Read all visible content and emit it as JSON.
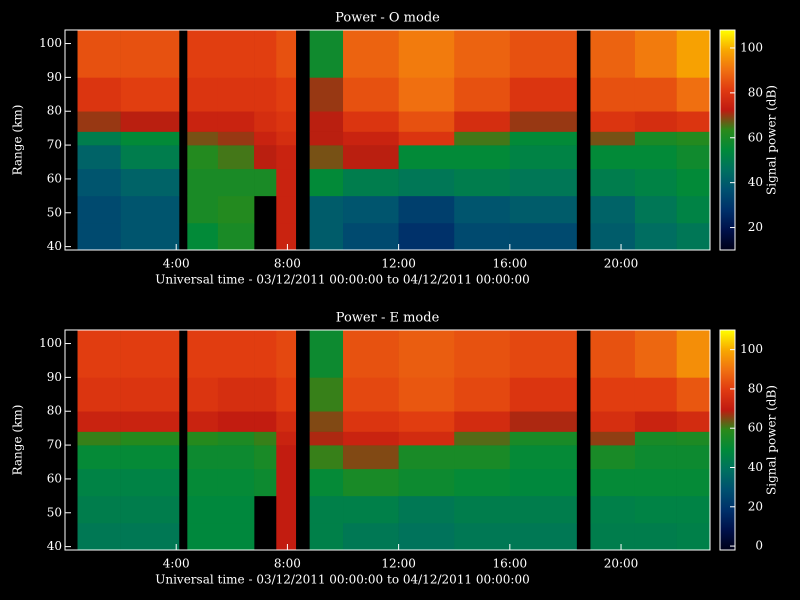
{
  "chart_data": [
    {
      "type": "heatmap",
      "title": "Power - O mode",
      "xlabel": "Universal time - 03/12/2011 00:00:00 to 04/12/2011 00:00:00",
      "ylabel": "Range (km)",
      "colorbar_label": "Signal power (dB)",
      "x_bins": [
        0,
        0.45,
        2,
        4.1,
        4.4,
        5.5,
        6.8,
        7.6,
        8.3,
        8.8,
        10,
        12,
        14,
        16,
        18.4,
        18.9,
        20.5,
        22,
        23.2
      ],
      "y_bins": [
        39,
        47,
        55,
        63,
        70,
        74,
        80,
        90,
        104
      ],
      "values": [
        [
          null,
          null,
          null,
          null,
          null,
          null,
          null,
          null
        ],
        [
          35,
          35,
          38,
          42,
          50,
          70,
          80,
          85
        ],
        [
          38,
          38,
          42,
          50,
          55,
          72,
          82,
          85
        ],
        [
          null,
          null,
          null,
          null,
          null,
          null,
          null,
          null
        ],
        [
          55,
          60,
          60,
          62,
          68,
          75,
          80,
          82
        ],
        [
          60,
          62,
          60,
          65,
          70,
          75,
          80,
          82
        ],
        [
          null,
          null,
          60,
          72,
          75,
          78,
          80,
          82
        ],
        [
          75,
          75,
          75,
          75,
          78,
          80,
          82,
          85
        ],
        [
          null,
          null,
          null,
          null,
          null,
          null,
          null,
          null
        ],
        [
          40,
          40,
          55,
          68,
          72,
          72,
          70,
          58
        ],
        [
          35,
          38,
          50,
          72,
          75,
          80,
          85,
          88
        ],
        [
          28,
          32,
          48,
          55,
          80,
          85,
          90,
          92
        ],
        [
          35,
          38,
          50,
          55,
          65,
          78,
          85,
          88
        ],
        [
          35,
          40,
          48,
          52,
          55,
          70,
          80,
          85
        ],
        [
          null,
          null,
          null,
          null,
          null,
          null,
          null,
          null
        ],
        [
          40,
          42,
          50,
          55,
          68,
          80,
          85,
          88
        ],
        [
          45,
          48,
          52,
          55,
          60,
          78,
          85,
          92
        ],
        [
          48,
          52,
          55,
          58,
          62,
          80,
          90,
          98
        ]
      ],
      "xlim": [
        0,
        23.2
      ],
      "ylim": [
        39,
        104
      ],
      "xticks": [
        {
          "value": 4,
          "label": "4:00"
        },
        {
          "value": 8,
          "label": "8:00"
        },
        {
          "value": 12,
          "label": "12:00"
        },
        {
          "value": 16,
          "label": "16:00"
        },
        {
          "value": 20,
          "label": "20:00"
        }
      ],
      "yticks": [
        40,
        50,
        60,
        70,
        80,
        90,
        100
      ],
      "clim": [
        10,
        108
      ],
      "cticks": [
        20,
        40,
        60,
        80,
        100
      ],
      "colormap": [
        "#000018",
        "#00104a",
        "#00306a",
        "#005070",
        "#007060",
        "#008a3a",
        "#2a8a1a",
        "#c01a10",
        "#e03a10",
        "#f07010",
        "#f8a800",
        "#ffff00"
      ]
    },
    {
      "type": "heatmap",
      "title": "Power - E mode",
      "xlabel": "Universal time - 03/12/2011 00:00:00 to 04/12/2011 00:00:00",
      "ylabel": "Range (km)",
      "colorbar_label": "Signal power (dB)",
      "x_bins": [
        0,
        0.45,
        2,
        4.1,
        4.4,
        5.5,
        6.8,
        7.6,
        8.3,
        8.8,
        10,
        12,
        14,
        16,
        18.4,
        18.9,
        20.5,
        22,
        23.2
      ],
      "y_bins": [
        39,
        47,
        55,
        63,
        70,
        74,
        80,
        90,
        104
      ],
      "values": [
        [
          null,
          null,
          null,
          null,
          null,
          null,
          null,
          null
        ],
        [
          42,
          44,
          46,
          50,
          60,
          72,
          78,
          80
        ],
        [
          42,
          44,
          46,
          50,
          58,
          72,
          78,
          80
        ],
        [
          null,
          null,
          null,
          null,
          null,
          null,
          null,
          null
        ],
        [
          48,
          48,
          50,
          52,
          58,
          72,
          78,
          80
        ],
        [
          48,
          48,
          50,
          52,
          56,
          70,
          76,
          80
        ],
        [
          null,
          null,
          52,
          55,
          60,
          70,
          76,
          80
        ],
        [
          70,
          70,
          70,
          70,
          72,
          75,
          80,
          82
        ],
        [
          null,
          null,
          null,
          null,
          null,
          null,
          null,
          null
        ],
        [
          45,
          45,
          50,
          60,
          68,
          65,
          60,
          52
        ],
        [
          42,
          45,
          55,
          65,
          72,
          78,
          82,
          84
        ],
        [
          40,
          42,
          52,
          55,
          75,
          80,
          85,
          86
        ],
        [
          42,
          44,
          50,
          55,
          62,
          75,
          82,
          84
        ],
        [
          42,
          44,
          48,
          50,
          55,
          68,
          78,
          82
        ],
        [
          null,
          null,
          null,
          null,
          null,
          null,
          null,
          null
        ],
        [
          44,
          45,
          50,
          55,
          66,
          76,
          80,
          84
        ],
        [
          44,
          46,
          50,
          52,
          55,
          72,
          80,
          88
        ],
        [
          45,
          46,
          50,
          52,
          56,
          75,
          85,
          95
        ]
      ],
      "xlim": [
        0,
        23.2
      ],
      "ylim": [
        39,
        104
      ],
      "xticks": [
        {
          "value": 4,
          "label": "4:00"
        },
        {
          "value": 8,
          "label": "8:00"
        },
        {
          "value": 12,
          "label": "12:00"
        },
        {
          "value": 16,
          "label": "16:00"
        },
        {
          "value": 20,
          "label": "20:00"
        }
      ],
      "yticks": [
        40,
        50,
        60,
        70,
        80,
        90,
        100
      ],
      "clim": [
        -2,
        110
      ],
      "cticks": [
        0,
        20,
        40,
        60,
        80,
        100
      ],
      "colormap": [
        "#000018",
        "#00104a",
        "#00306a",
        "#005070",
        "#007060",
        "#008a3a",
        "#2a8a1a",
        "#c01a10",
        "#e03a10",
        "#f07010",
        "#f8a800",
        "#ffff00"
      ]
    }
  ]
}
